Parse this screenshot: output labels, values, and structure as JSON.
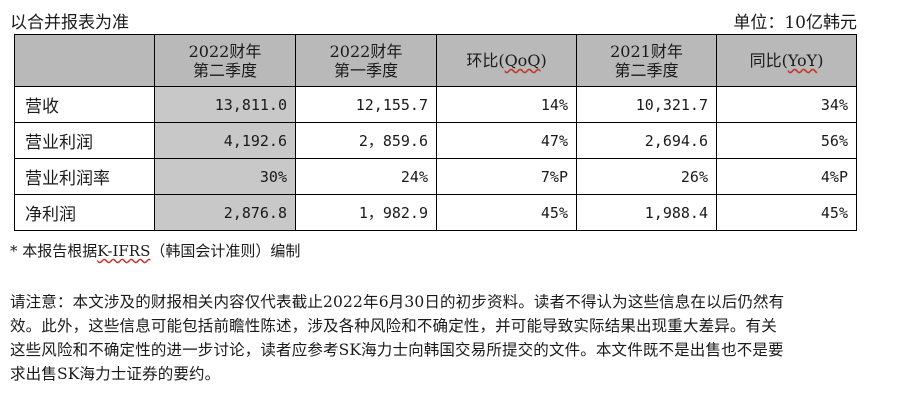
{
  "header": {
    "basis_label": "以合并报表为准",
    "unit_label": "单位：10亿韩元"
  },
  "table": {
    "columns": [
      {
        "line1": "2022财年",
        "line2": "第二季度"
      },
      {
        "line1": "2022财年",
        "line2": "第一季度"
      },
      {
        "line1": "环比(",
        "abbr": "QoQ",
        "line1_end": ")"
      },
      {
        "line1": "2021财年",
        "line2": "第二季度"
      },
      {
        "line1": "同比(",
        "abbr": "YoY",
        "line1_end": ")"
      }
    ],
    "rows": [
      {
        "label": "营收",
        "values": [
          "13,811.0",
          "12,155.7",
          "14%",
          "10,321.7",
          "34%"
        ]
      },
      {
        "label": "营业利润",
        "values": [
          "4,192.6",
          "2，859.6",
          "47%",
          "2,694.6",
          "56%"
        ]
      },
      {
        "label": "营业利润率",
        "values": [
          "30%",
          "24%",
          "7%P",
          "26%",
          "4%P"
        ]
      },
      {
        "label": "净利润",
        "values": [
          "2,876.8",
          "1，982.9",
          "45%",
          "1,988.4",
          "45%"
        ]
      }
    ],
    "header_fill": "#b9b9b9",
    "highlight_fill": "#c8c8c8"
  },
  "footnote": {
    "prefix": "* 本报告根据",
    "standard": "K-IFRS",
    "suffix": "（韩国会计准则）编制"
  },
  "disclaimer": {
    "lines": [
      "请注意：本文涉及的财报相关内容仅代表截止2022年6月30日的初步资料。读者不得认为这些信息在以后仍然有",
      "效。此外，这些信息可能包括前瞻性陈述，涉及各种风险和不确定性，并可能导致实际结果出现重大差异。有关",
      "这些风险和不确定性的进一步讨论，读者应参考SK海力士向韩国交易所提交的文件。本文件既不是出售也不是要",
      "求出售SK海力士证券的要约。"
    ]
  }
}
